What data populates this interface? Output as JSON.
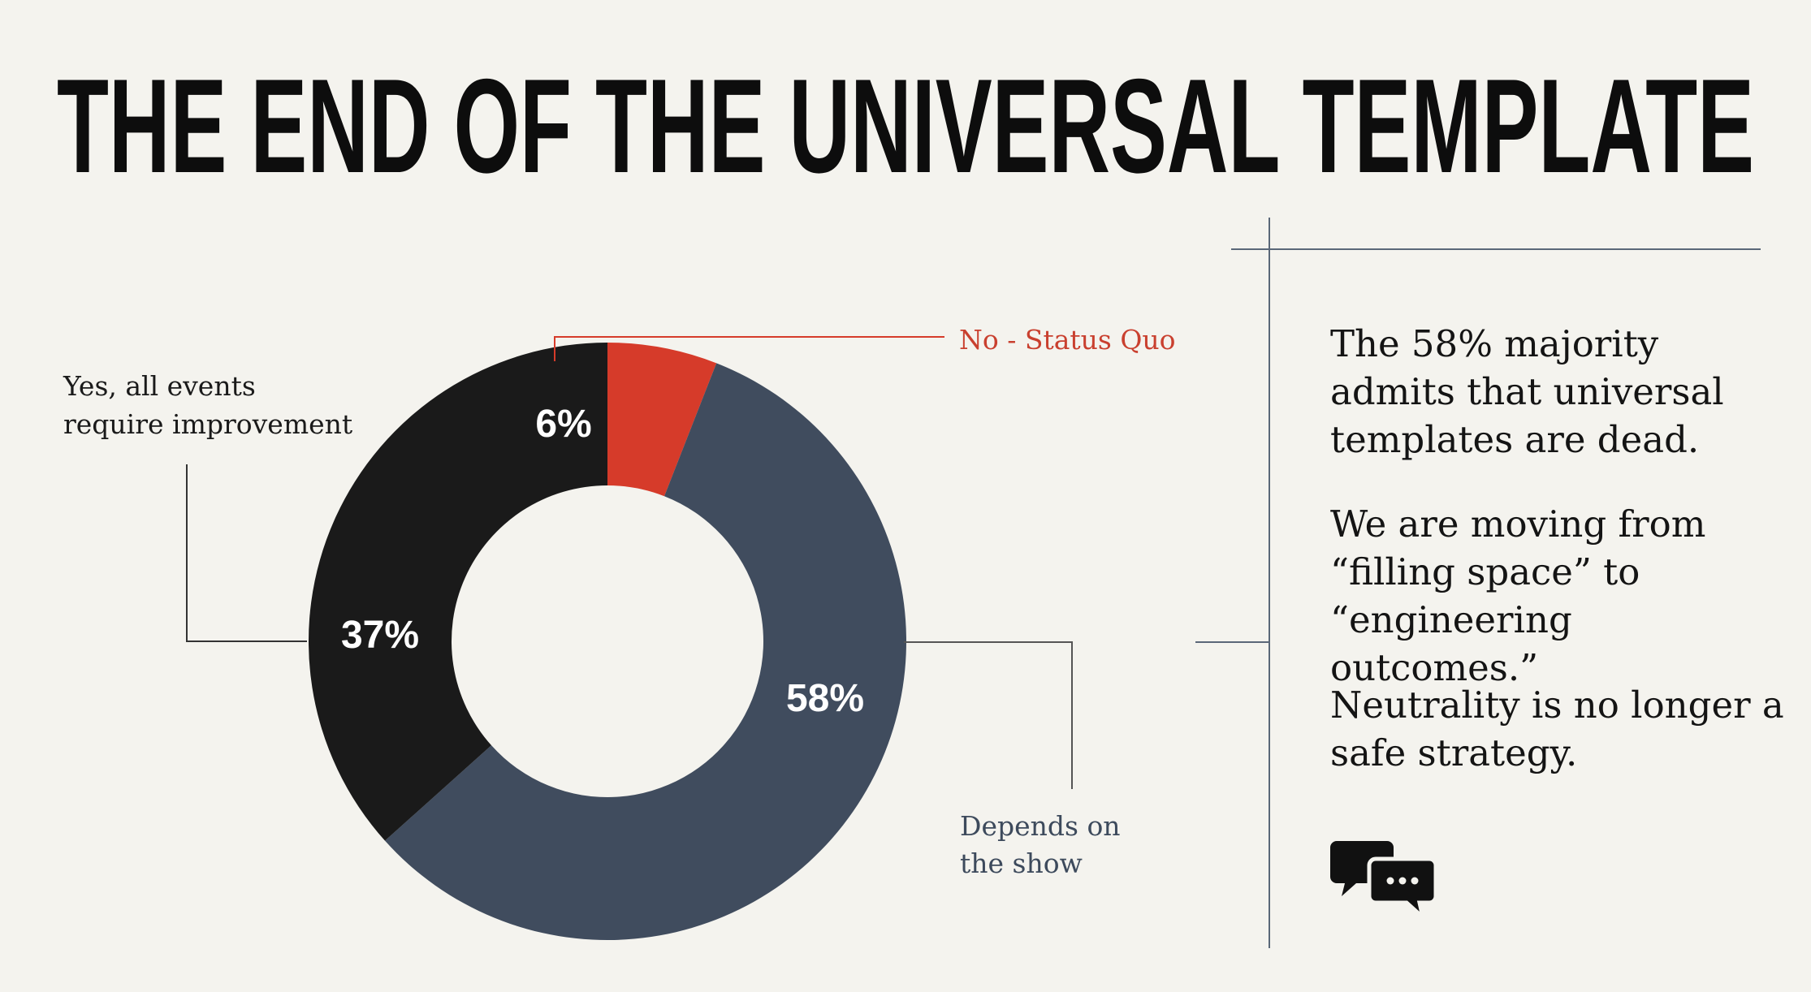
{
  "title": "THE END OF THE UNIVERSAL TEMPLATE",
  "chart_data": {
    "type": "pie",
    "style": "donut",
    "slices": [
      {
        "label": "No - Status Quo",
        "value": 6,
        "display": "6%",
        "color": "#d63b2a"
      },
      {
        "label": "Depends on the show",
        "label_lines": [
          "Depends on",
          "the show"
        ],
        "value": 58,
        "display": "58%",
        "color": "#404c5e"
      },
      {
        "label": "Yes, all events require improvement",
        "label_lines": [
          "Yes, all events",
          "require improvement"
        ],
        "value": 37,
        "display": "37%",
        "color": "#1a1a1a"
      }
    ],
    "start": "12 o'clock",
    "direction": "clockwise"
  },
  "side_panel": {
    "paragraphs": [
      [
        "The 58% majority",
        "admits that universal",
        "templates are dead."
      ],
      [
        "We are moving from",
        "“filling space” to",
        "“engineering outcomes.”"
      ],
      [
        "Neutrality is no longer a",
        "safe strategy."
      ]
    ],
    "icon": "chat-bubbles-icon"
  },
  "colors": {
    "background": "#f4f3ee",
    "title": "#0d0d0d",
    "red": "#d63b2a",
    "slate": "#404c5e",
    "black": "#1a1a1a",
    "leader": "#555555",
    "divider": "#5a6778"
  }
}
